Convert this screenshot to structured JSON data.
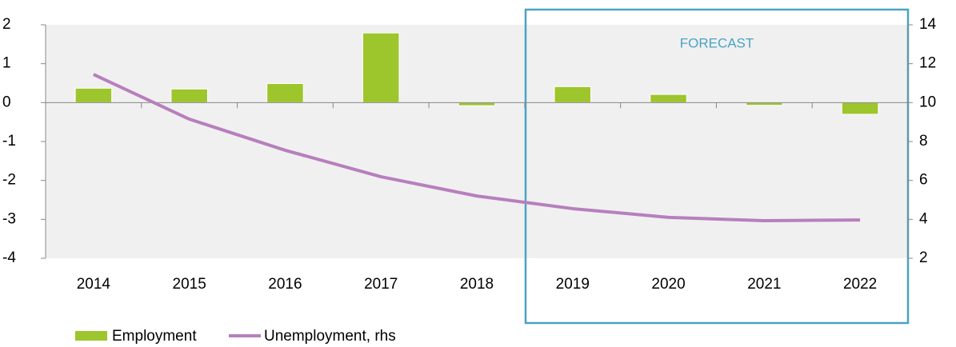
{
  "chart_data": {
    "type": "bar_line",
    "categories": [
      "2014",
      "2015",
      "2016",
      "2017",
      "2018",
      "2019",
      "2020",
      "2021",
      "2022"
    ],
    "series": [
      {
        "name": "Employment",
        "color": "#9dc52c",
        "values": [
          0.37,
          0.35,
          0.49,
          1.79,
          -0.08,
          0.41,
          0.21,
          -0.07,
          -0.3
        ]
      },
      {
        "name": "Unemployment, rhs",
        "color": "#b77fbd",
        "axis": "y2",
        "values": [
          11.45,
          9.15,
          7.55,
          6.19,
          5.2,
          4.55,
          4.1,
          3.93,
          3.97
        ]
      }
    ],
    "ylim": [
      -4,
      2
    ],
    "yticks": [
      -4,
      -3,
      -2,
      -1,
      0,
      1,
      2
    ],
    "y2lim": [
      2,
      14
    ],
    "y2ticks": [
      2,
      4,
      6,
      8,
      10,
      12,
      14
    ],
    "annotation": "FORECAST"
  }
}
